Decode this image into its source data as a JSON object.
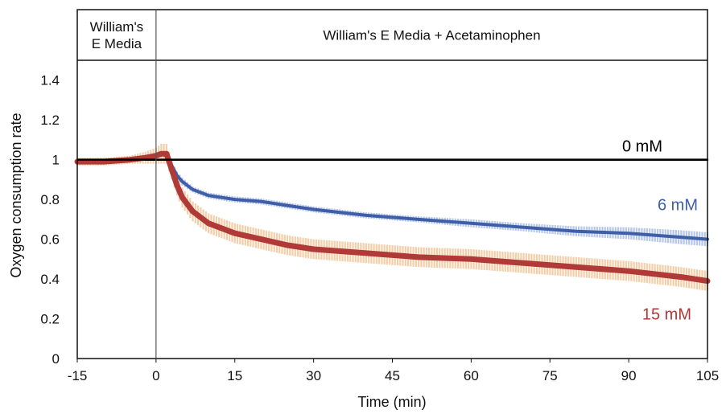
{
  "chart_data": {
    "type": "line",
    "xlabel": "Time (min)",
    "ylabel": "Oxygen consumption rate",
    "xlim": [
      -15,
      105
    ],
    "ylim": [
      0,
      1.5
    ],
    "x_ticks": [
      -15,
      0,
      15,
      30,
      45,
      60,
      75,
      90,
      105
    ],
    "y_ticks": [
      0,
      0.2,
      0.4,
      0.6,
      0.8,
      1,
      1.2,
      1.4
    ],
    "y_tick_labels": [
      "0",
      "0.2",
      "0.4",
      "0.6",
      "0.8",
      "1",
      "1.2",
      "1.4"
    ],
    "grid": false,
    "phases": [
      {
        "label_lines": [
          "William's",
          "E Media"
        ],
        "x_start": -15,
        "x_end": 0
      },
      {
        "label_lines": [
          "William's E Media + Acetaminophen"
        ],
        "x_start": 0,
        "x_end": 105
      }
    ],
    "series": [
      {
        "name": "0 mM",
        "color": "#000000",
        "x": [
          -15,
          105
        ],
        "y": [
          1.0,
          1.0
        ]
      },
      {
        "name": "6 mM",
        "color": "#3f5ea8",
        "band_color": "#a9bde6",
        "x": [
          -15,
          -10,
          -5,
          -2,
          0,
          1,
          2,
          3,
          4,
          5,
          7,
          10,
          15,
          20,
          25,
          30,
          40,
          50,
          60,
          70,
          80,
          90,
          100,
          105
        ],
        "y": [
          0.99,
          0.99,
          1.0,
          1.01,
          1.02,
          1.03,
          1.02,
          0.97,
          0.92,
          0.89,
          0.85,
          0.82,
          0.8,
          0.79,
          0.77,
          0.75,
          0.72,
          0.7,
          0.68,
          0.66,
          0.64,
          0.63,
          0.61,
          0.6
        ],
        "error": [
          0.01,
          0.01,
          0.01,
          0.01,
          0.01,
          0.01,
          0.02,
          0.02,
          0.02,
          0.02,
          0.015,
          0.015,
          0.015,
          0.015,
          0.015,
          0.015,
          0.015,
          0.015,
          0.02,
          0.02,
          0.025,
          0.03,
          0.035,
          0.035
        ]
      },
      {
        "name": "15 mM",
        "color": "#b03a37",
        "band_color": "#f2c59a",
        "x": [
          -15,
          -10,
          -5,
          -2,
          0,
          1,
          2,
          3,
          4,
          5,
          7,
          10,
          15,
          20,
          25,
          30,
          40,
          50,
          60,
          70,
          80,
          90,
          100,
          105
        ],
        "y": [
          0.99,
          0.99,
          1.0,
          1.01,
          1.02,
          1.03,
          1.03,
          0.95,
          0.87,
          0.81,
          0.74,
          0.68,
          0.63,
          0.6,
          0.57,
          0.55,
          0.53,
          0.51,
          0.5,
          0.48,
          0.46,
          0.44,
          0.41,
          0.39
        ],
        "error": [
          0.02,
          0.02,
          0.02,
          0.03,
          0.04,
          0.05,
          0.05,
          0.05,
          0.05,
          0.05,
          0.05,
          0.05,
          0.05,
          0.05,
          0.05,
          0.05,
          0.05,
          0.05,
          0.05,
          0.05,
          0.05,
          0.05,
          0.05,
          0.05
        ]
      }
    ]
  }
}
